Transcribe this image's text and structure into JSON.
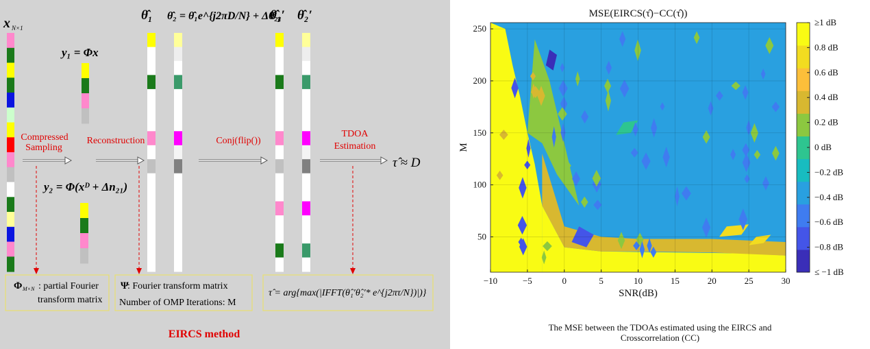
{
  "diagram": {
    "labels": {
      "x_vec": "x",
      "x_sub": "N×1",
      "y1_eq": "y₁ = Φx",
      "y2_eq": "y₂ = Φ(xᴰ + Δn₂₁)",
      "theta1": "θ̂₁",
      "theta2_eq": "θ̂₂ = θ̂₁e^{j2πD/N} + Δθ̂₂₁",
      "theta1p": "θ̂₁′",
      "theta2p": "θ̂₂′",
      "tau_approx": "τ̂ ≈ D"
    },
    "steps": [
      "Compressed",
      "Sampling",
      "Reconstruction",
      "Conj(flip())",
      "TDOA",
      "Estimation"
    ],
    "boxes": {
      "phi_title": "Φ",
      "phi_sub": "M×N",
      "phi_text1": ": partial Fourier",
      "phi_text2": "transform matrix",
      "psi_title": "Ψ",
      "psi_text1": " : Fourier transform matrix",
      "psi_text2": "Number of OMP Iterations: M",
      "tau_text": "τ̂ = arg{max(|IFFT(θ̂₁′θ̂₂′* e^{j2πτ/N})|)}"
    },
    "method_title": "EIRCS method",
    "x_colors": [
      "#ff88cc",
      "#1a7a1a",
      "#ffff00",
      "#1a7a1a",
      "#0b15e0",
      "#ccffcc",
      "#ffff00",
      "#ff0000",
      "#ff88cc",
      "#c0c0c0",
      "#ffffff",
      "#1a7a1a",
      "#ffff99",
      "#0b15e0",
      "#ff88cc",
      "#1a7a1a"
    ],
    "y_colors": [
      "#ffff00",
      "#1a7a1a",
      "#ff88cc",
      "#c0c0c0"
    ],
    "theta1_colors": [
      "#ffff00",
      "#ffffff",
      "#ffffff",
      "#1a7a1a",
      "#ffffff",
      "#ffffff",
      "#ffffff",
      "#ff88cc",
      "#ffffff",
      "#c0c0c0",
      "#ffffff",
      "#ffffff",
      "#ffffff",
      "#ffffff",
      "#ffffff",
      "#ffffff",
      "#ffffff"
    ],
    "theta2_colors": [
      "#ffff99",
      "#eeeeee",
      "#ffffff",
      "#3a9a6a",
      "#ffffff",
      "#ffffff",
      "#ffffff",
      "#ff00ff",
      "#f4f4f4",
      "#808080",
      "#ffffff",
      "#ffffff",
      "#ffffff",
      "#ffffff",
      "#ffffff",
      "#ffffff",
      "#ffffff"
    ],
    "theta1p_colors": [
      "#ffff00",
      "#ffffff",
      "#ffffff",
      "#1a7a1a",
      "#ffffff",
      "#ffffff",
      "#ffffff",
      "#ff88cc",
      "#ffffff",
      "#c0c0c0",
      "#ffffff",
      "#ffffff",
      "#ff88cc",
      "#ffffff",
      "#ffffff",
      "#1a7a1a",
      "#ffffff"
    ],
    "theta2p_colors": [
      "#ffff99",
      "#eeeeee",
      "#ffffff",
      "#3a9a6a",
      "#ffffff",
      "#ffffff",
      "#ffffff",
      "#ff00ff",
      "#f4f4f4",
      "#808080",
      "#ffffff",
      "#ffffff",
      "#ff00ff",
      "#ffffff",
      "#ffffff",
      "#3a9a6a",
      "#ffffff"
    ],
    "colors": {
      "red": "#e00000",
      "box_border": "#e8e070",
      "panel": "#d3d3d3"
    }
  },
  "chart_data": {
    "type": "heatmap",
    "title": "MSE(EIRCS(τ̂)−CC(τ̂))",
    "xlabel": "SNR(dB)",
    "ylabel": "M",
    "x_ticks": [
      -10,
      -5,
      0,
      5,
      10,
      15,
      20,
      25,
      30
    ],
    "y_ticks": [
      50,
      100,
      150,
      200,
      250
    ],
    "xlim": [
      -10,
      30
    ],
    "ylim": [
      16,
      256
    ],
    "grid": true,
    "colorbar": {
      "range": [
        -1,
        1
      ],
      "ticks": [
        -1,
        -0.8,
        -0.6,
        -0.4,
        -0.2,
        0,
        0.2,
        0.4,
        0.6,
        0.8,
        1
      ],
      "tick_labels": [
        "≤ −1 dB",
        "−0.8 dB",
        "−0.6 dB",
        "−0.4 dB",
        "−0.2 dB",
        "0 dB",
        "0.2 dB",
        "0.4 dB",
        "0.6 dB",
        "0.8 dB",
        "≥1 dB"
      ],
      "colors": [
        "#3a2eb8",
        "#4455e8",
        "#3f7cf0",
        "#29a0e0",
        "#18bcc0",
        "#2ec590",
        "#8cc840",
        "#d8b830",
        "#fcbf3a",
        "#f2dc20",
        "#f9fb14"
      ]
    },
    "background_value": -0.35,
    "regions": [
      {
        "x": [
          -10,
          -3,
          -3,
          -4,
          -5,
          -6,
          -7,
          -8,
          -10
        ],
        "y": [
          16,
          16,
          80,
          120,
          150,
          185,
          215,
          250,
          256
        ],
        "v": 1
      },
      {
        "x": [
          -3,
          30,
          30,
          25,
          15,
          5,
          0,
          -3
        ],
        "y": [
          16,
          16,
          32,
          34,
          35,
          36,
          40,
          80
        ],
        "v": 1
      },
      {
        "x": [
          -3,
          0,
          5,
          10,
          20,
          30,
          30,
          20,
          10,
          5,
          0,
          -3
        ],
        "y": [
          80,
          40,
          36,
          36,
          35,
          32,
          45,
          48,
          48,
          50,
          60,
          130
        ],
        "v": 0.4
      },
      {
        "x": [
          -5,
          -3,
          -1,
          2,
          -2,
          -4
        ],
        "y": [
          150,
          140,
          110,
          80,
          200,
          240
        ],
        "v": 0.15
      },
      {
        "x": [
          2,
          4,
          3,
          1
        ],
        "y": [
          60,
          52,
          40,
          45
        ],
        "v": -0.85
      },
      {
        "x": [
          -2,
          -1,
          -1.5,
          -2.5
        ],
        "y": [
          230,
          225,
          210,
          215
        ],
        "v": -0.9
      },
      {
        "x": [
          22,
          25,
          24,
          21
        ],
        "y": [
          60,
          62,
          52,
          50
        ],
        "v": 0.7
      },
      {
        "x": [
          26,
          28,
          27,
          25
        ],
        "y": [
          50,
          52,
          44,
          42
        ],
        "v": 0.7
      },
      {
        "x": [
          8,
          10,
          9,
          7
        ],
        "y": [
          160,
          162,
          150,
          148
        ],
        "v": 0.05
      }
    ]
  }
}
